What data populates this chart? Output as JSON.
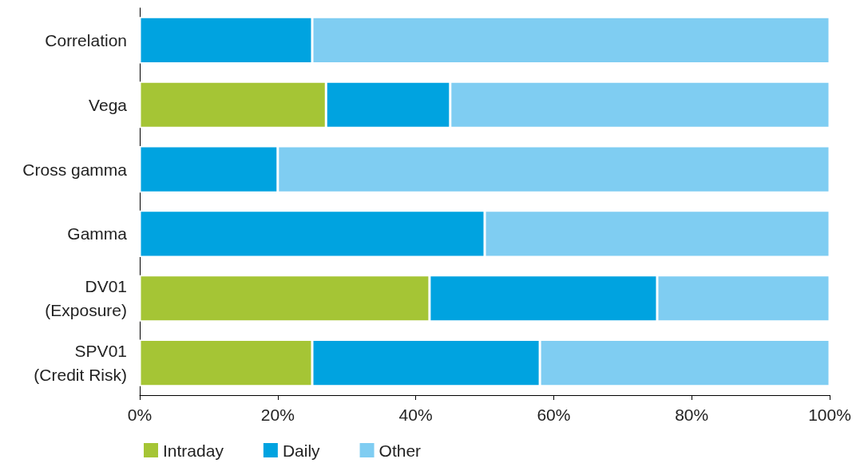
{
  "chart_data": {
    "type": "bar",
    "orientation": "horizontal",
    "stacked": true,
    "categories": [
      "Correlation",
      "Vega",
      "Cross gamma",
      "Gamma",
      "DV01\n(Exposure)",
      "SPV01\n(Credit Risk)"
    ],
    "series": [
      {
        "name": "Intraday",
        "color": "#a5c535",
        "values": [
          null,
          27,
          null,
          null,
          42,
          25
        ]
      },
      {
        "name": "Daily",
        "color": "#00a3e0",
        "values": [
          25,
          18,
          20,
          50,
          33,
          33
        ]
      },
      {
        "name": "Other",
        "color": "#7fcdf2",
        "values": [
          75,
          55,
          80,
          50,
          25,
          42
        ]
      }
    ],
    "xlim": [
      0,
      100
    ],
    "xticks": [
      {
        "value": 0,
        "label": "0%"
      },
      {
        "value": 20,
        "label": "20%"
      },
      {
        "value": 40,
        "label": "40%"
      },
      {
        "value": 60,
        "label": "60%"
      },
      {
        "value": 80,
        "label": "80%"
      },
      {
        "value": 100,
        "label": "100%"
      }
    ],
    "grid": false,
    "legend": "bottom left"
  }
}
